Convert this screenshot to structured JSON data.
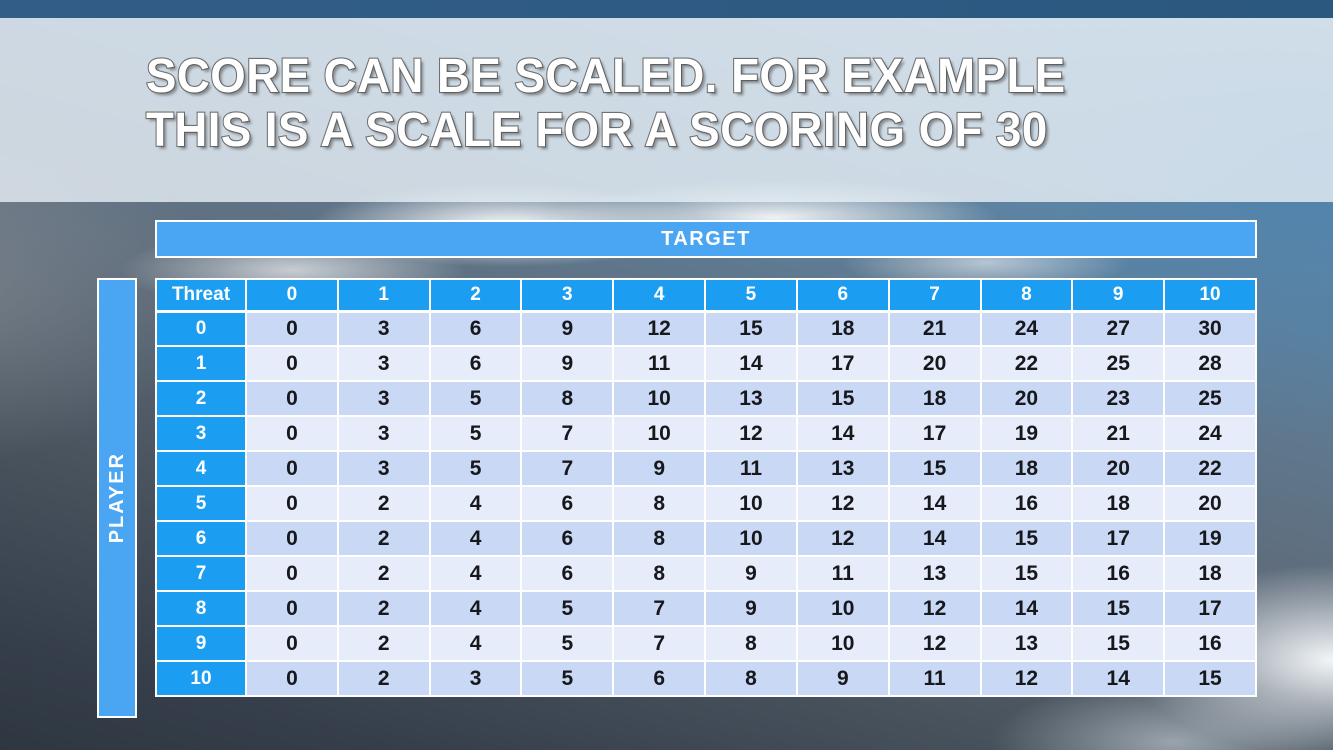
{
  "slide": {
    "title_line1": "SCORE CAN BE SCALED. FOR EXAMPLE",
    "title_line2": "THIS IS A SCALE FOR A SCORING OF 30"
  },
  "table": {
    "target_label": "TARGET",
    "player_label": "PLAYER",
    "corner_label": "Threat",
    "column_headers": [
      "0",
      "1",
      "2",
      "3",
      "4",
      "5",
      "6",
      "7",
      "8",
      "9",
      "10"
    ],
    "row_headers": [
      "0",
      "1",
      "2",
      "3",
      "4",
      "5",
      "6",
      "7",
      "8",
      "9",
      "10"
    ],
    "rows": [
      [
        0,
        3,
        6,
        9,
        12,
        15,
        18,
        21,
        24,
        27,
        30
      ],
      [
        0,
        3,
        6,
        9,
        11,
        14,
        17,
        20,
        22,
        25,
        28
      ],
      [
        0,
        3,
        5,
        8,
        10,
        13,
        15,
        18,
        20,
        23,
        25
      ],
      [
        0,
        3,
        5,
        7,
        10,
        12,
        14,
        17,
        19,
        21,
        24
      ],
      [
        0,
        3,
        5,
        7,
        9,
        11,
        13,
        15,
        18,
        20,
        22
      ],
      [
        0,
        2,
        4,
        6,
        8,
        10,
        12,
        14,
        16,
        18,
        20
      ],
      [
        0,
        2,
        4,
        6,
        8,
        10,
        12,
        14,
        15,
        17,
        19
      ],
      [
        0,
        2,
        4,
        6,
        8,
        9,
        11,
        13,
        15,
        16,
        18
      ],
      [
        0,
        2,
        4,
        5,
        7,
        9,
        10,
        12,
        14,
        15,
        17
      ],
      [
        0,
        2,
        4,
        5,
        7,
        8,
        10,
        12,
        13,
        15,
        16
      ],
      [
        0,
        2,
        3,
        5,
        6,
        8,
        9,
        11,
        12,
        14,
        15
      ]
    ]
  },
  "colors": {
    "top_bar": "#2d5984",
    "header_blue": "#1b9ef2",
    "band_blue": "#4aa5f3",
    "row_dark": "#c9d8f4",
    "row_light": "#e7ecfa",
    "cell_text": "#16181c",
    "grid_white": "#ffffff"
  }
}
